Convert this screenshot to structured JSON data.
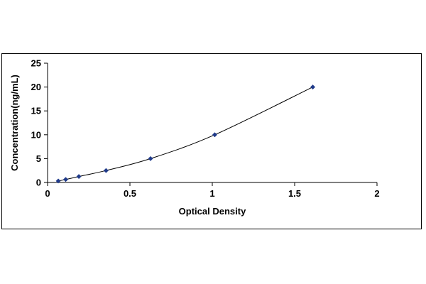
{
  "chart_data": {
    "type": "scatter",
    "title": "",
    "xlabel": "Optical Density",
    "ylabel": "Concentration(ng/mL)",
    "xlim": [
      0,
      2
    ],
    "ylim": [
      0,
      25
    ],
    "x_ticks": [
      "0",
      "0.5",
      "1",
      "1.5",
      "2"
    ],
    "y_ticks": [
      "0",
      "5",
      "10",
      "15",
      "20",
      "25"
    ],
    "grid": false,
    "legend": "none",
    "series": [
      {
        "color": "#1f3a8a",
        "x": [
          0.065,
          0.11,
          0.19,
          0.355,
          0.625,
          1.015,
          1.61
        ],
        "y": [
          0.31,
          0.625,
          1.25,
          2.5,
          5,
          10,
          20
        ],
        "trendline": "smooth curve"
      }
    ]
  }
}
